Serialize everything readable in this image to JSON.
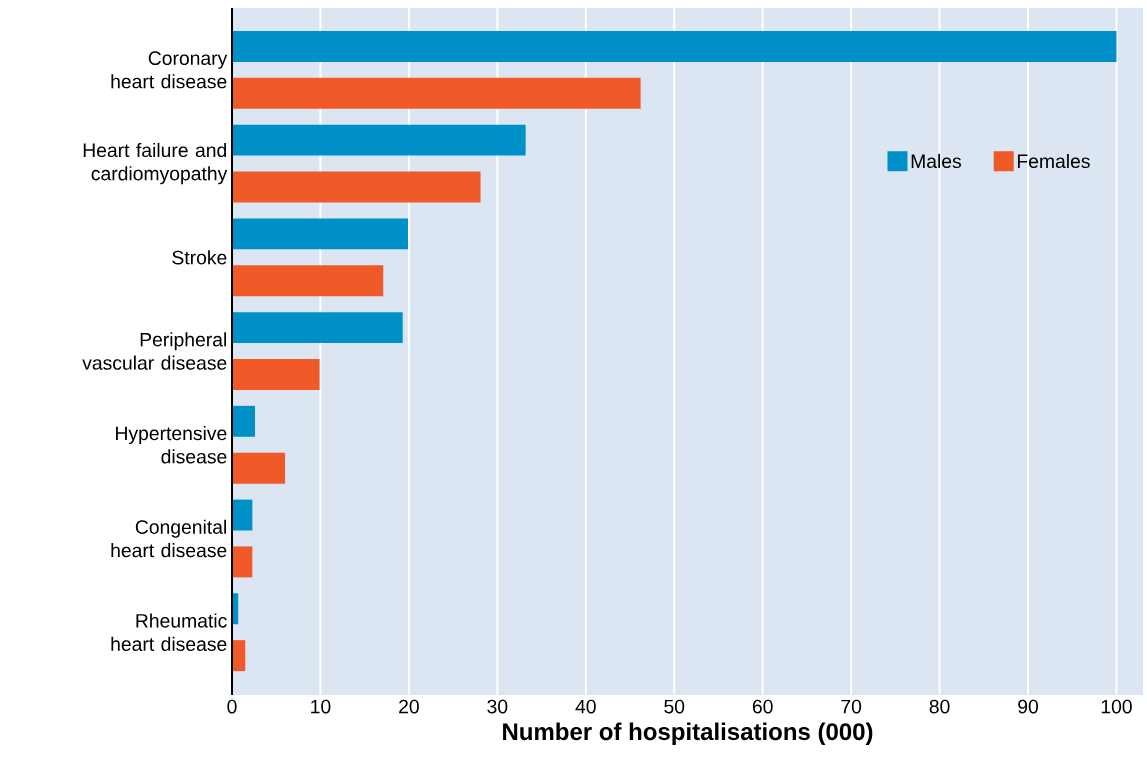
{
  "chart_data": {
    "type": "bar",
    "orientation": "horizontal",
    "xlabel": "Number of hospitalisations (000)",
    "categories": [
      "Coronary heart disease",
      "Heart failure and cardiomyopathy",
      "Stroke",
      "Peripheral vascular disease",
      "Hypertensive disease",
      "Congenital heart disease",
      "Rheumatic heart disease"
    ],
    "series": [
      {
        "name": "Males",
        "color": "#0090c8",
        "values": [
          100,
          33.2,
          19.9,
          19.3,
          2.6,
          2.3,
          0.7
        ]
      },
      {
        "name": "Females",
        "color": "#f05a28",
        "values": [
          46.2,
          28.1,
          17.1,
          9.9,
          6.0,
          2.3,
          1.5
        ]
      }
    ],
    "xlim": [
      0,
      103
    ],
    "xticks": [
      0,
      10,
      20,
      30,
      40,
      50,
      60,
      70,
      80,
      90,
      100
    ],
    "grid": "x",
    "legend": "top right"
  }
}
